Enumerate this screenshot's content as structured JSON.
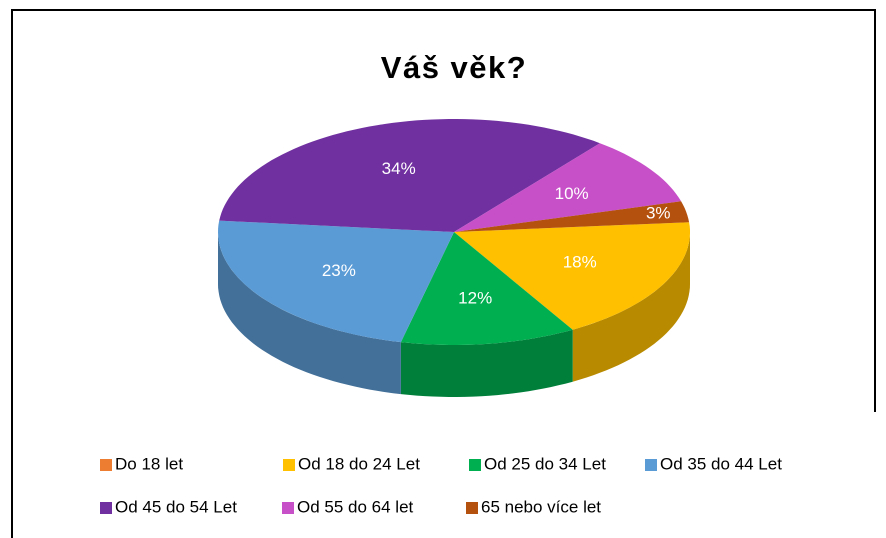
{
  "chart_data": {
    "type": "pie",
    "title": "Váš věk?",
    "categories": [
      "Do 18 let",
      "Od 18 do 24 Let",
      "Od 25 do 34 Let",
      "Od 35 do 44 Let",
      "Od 45 do 54 Let",
      "Od 55 do 64 let",
      "65 nebo více let"
    ],
    "values": [
      0,
      18,
      12,
      23,
      34,
      10,
      3
    ],
    "value_labels": [
      null,
      "18%",
      "12%",
      "23%",
      "34%",
      "10%",
      "3%"
    ],
    "colors": [
      "#ed7d31",
      "#ffc000",
      "#00b050",
      "#5b9bd5",
      "#7030a0",
      "#c74fc8",
      "#b4510f"
    ],
    "legend": "bottom"
  }
}
